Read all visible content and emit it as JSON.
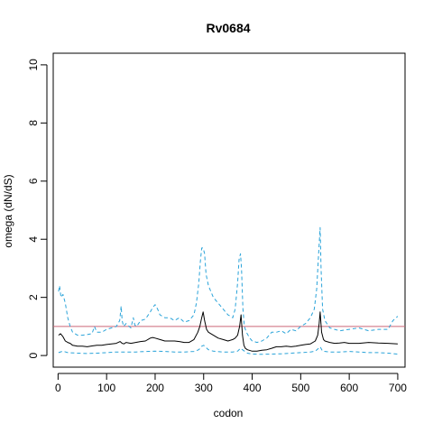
{
  "chart_data": {
    "type": "line",
    "title": "Rv0684",
    "xlabel": "codon",
    "ylabel": "omega (dN/dS)",
    "xlim": [
      -10,
      715
    ],
    "ylim": [
      -0.4,
      10.4
    ],
    "x_ticks": [
      0,
      100,
      200,
      300,
      400,
      500,
      600,
      700
    ],
    "y_ticks": [
      0,
      2,
      4,
      6,
      8,
      10
    ],
    "reference_line": {
      "y": 1,
      "color": "#cc6677"
    },
    "colors": {
      "mean": "#000000",
      "ci": "#29a3d9"
    },
    "grid": false,
    "legend": "none",
    "series": [
      {
        "role": "mean",
        "style": "solid",
        "x": [
          1,
          5,
          10,
          15,
          20,
          25,
          30,
          40,
          50,
          60,
          70,
          80,
          90,
          100,
          110,
          120,
          128,
          132,
          136,
          140,
          150,
          160,
          170,
          180,
          190,
          195,
          200,
          210,
          220,
          230,
          240,
          250,
          260,
          270,
          280,
          288,
          292,
          296,
          299,
          302,
          306,
          310,
          320,
          330,
          340,
          350,
          360,
          365,
          370,
          374,
          377,
          380,
          383,
          386,
          390,
          400,
          410,
          420,
          430,
          440,
          450,
          460,
          470,
          480,
          490,
          500,
          510,
          520,
          530,
          535,
          538,
          540,
          543,
          547,
          550,
          560,
          570,
          580,
          590,
          600,
          620,
          640,
          660,
          680,
          700
        ],
        "y": [
          0.7,
          0.75,
          0.65,
          0.5,
          0.45,
          0.42,
          0.35,
          0.32,
          0.32,
          0.3,
          0.33,
          0.35,
          0.35,
          0.38,
          0.4,
          0.42,
          0.48,
          0.42,
          0.4,
          0.45,
          0.42,
          0.45,
          0.48,
          0.5,
          0.6,
          0.62,
          0.6,
          0.55,
          0.5,
          0.5,
          0.5,
          0.48,
          0.45,
          0.45,
          0.55,
          0.8,
          1.0,
          1.3,
          1.5,
          1.2,
          0.9,
          0.8,
          0.7,
          0.6,
          0.55,
          0.5,
          0.55,
          0.6,
          0.7,
          1.0,
          1.4,
          0.7,
          0.35,
          0.25,
          0.2,
          0.15,
          0.15,
          0.18,
          0.2,
          0.25,
          0.3,
          0.3,
          0.32,
          0.3,
          0.32,
          0.35,
          0.38,
          0.4,
          0.5,
          0.7,
          1.1,
          1.5,
          0.8,
          0.55,
          0.5,
          0.45,
          0.42,
          0.43,
          0.45,
          0.42,
          0.42,
          0.45,
          0.43,
          0.42,
          0.4
        ]
      },
      {
        "role": "upper",
        "style": "dashed",
        "x": [
          1,
          3,
          6,
          10,
          15,
          20,
          25,
          30,
          40,
          50,
          60,
          70,
          75,
          80,
          90,
          100,
          110,
          120,
          127,
          130,
          132,
          135,
          140,
          150,
          155,
          158,
          162,
          170,
          180,
          190,
          195,
          200,
          205,
          210,
          220,
          230,
          240,
          250,
          260,
          270,
          280,
          285,
          290,
          293,
          296,
          299,
          302,
          305,
          310,
          320,
          330,
          340,
          350,
          360,
          365,
          370,
          373,
          376,
          378,
          381,
          384,
          388,
          395,
          400,
          410,
          420,
          430,
          440,
          450,
          460,
          470,
          480,
          490,
          500,
          510,
          520,
          528,
          533,
          537,
          540,
          542,
          545,
          550,
          560,
          570,
          580,
          600,
          620,
          640,
          660,
          680,
          690,
          700
        ],
        "y": [
          2.2,
          2.4,
          2.0,
          2.1,
          1.8,
          1.3,
          1.0,
          0.8,
          0.7,
          0.7,
          0.72,
          0.75,
          1.0,
          0.8,
          0.8,
          0.9,
          0.95,
          1.0,
          1.2,
          1.7,
          1.2,
          1.0,
          1.1,
          0.95,
          1.3,
          1.05,
          1.0,
          1.2,
          1.25,
          1.5,
          1.65,
          1.75,
          1.6,
          1.4,
          1.3,
          1.3,
          1.2,
          1.3,
          1.15,
          1.2,
          1.4,
          1.8,
          2.5,
          3.2,
          3.7,
          3.7,
          3.5,
          2.8,
          2.4,
          2.0,
          1.8,
          1.6,
          1.4,
          1.3,
          1.6,
          2.5,
          3.3,
          3.5,
          3.0,
          1.6,
          1.0,
          0.8,
          0.6,
          0.5,
          0.45,
          0.5,
          0.6,
          0.8,
          0.8,
          0.85,
          0.75,
          0.9,
          0.85,
          1.0,
          1.1,
          1.3,
          1.6,
          2.3,
          3.5,
          4.4,
          3.0,
          1.6,
          1.2,
          0.95,
          0.9,
          0.85,
          0.9,
          0.95,
          0.85,
          0.9,
          0.9,
          1.2,
          1.35
        ]
      },
      {
        "role": "lower",
        "style": "dashed",
        "x": [
          1,
          10,
          20,
          40,
          60,
          80,
          100,
          120,
          140,
          160,
          180,
          200,
          220,
          240,
          260,
          280,
          290,
          296,
          300,
          310,
          320,
          340,
          360,
          370,
          376,
          380,
          390,
          400,
          420,
          440,
          460,
          480,
          500,
          520,
          530,
          537,
          540,
          545,
          560,
          580,
          600,
          620,
          640,
          660,
          680,
          700
        ],
        "y": [
          0.1,
          0.15,
          0.1,
          0.08,
          0.07,
          0.08,
          0.1,
          0.12,
          0.12,
          0.12,
          0.14,
          0.15,
          0.14,
          0.12,
          0.12,
          0.14,
          0.2,
          0.32,
          0.35,
          0.2,
          0.15,
          0.12,
          0.12,
          0.15,
          0.25,
          0.2,
          0.08,
          0.05,
          0.04,
          0.05,
          0.06,
          0.08,
          0.1,
          0.12,
          0.15,
          0.25,
          0.3,
          0.15,
          0.12,
          0.12,
          0.14,
          0.12,
          0.1,
          0.1,
          0.08,
          0.05
        ]
      }
    ]
  }
}
